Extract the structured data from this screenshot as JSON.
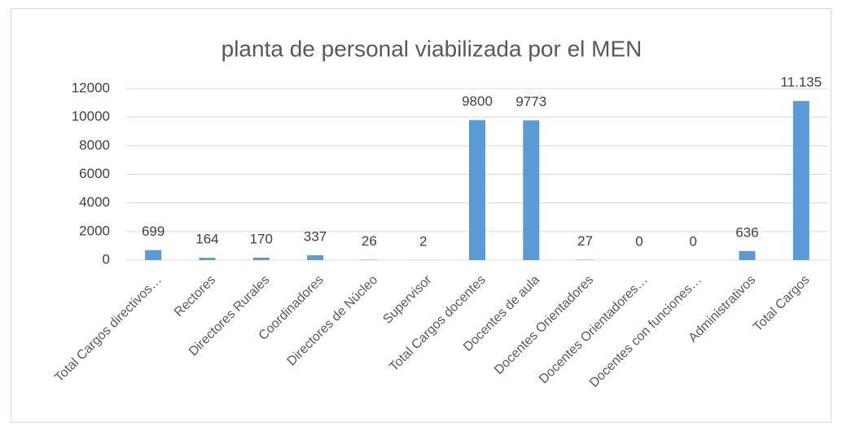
{
  "chart_data": {
    "type": "bar",
    "title": "planta de personal viabilizada por el MEN",
    "categories": [
      "Total Cargos directivos…",
      "Rectores",
      "Directores Rurales",
      "Coordinadores",
      "Directores de Núcleo",
      "Supervisor",
      "Total Cargos docentes",
      "Docentes de aula",
      "Docentes Orientadores",
      "Docentes Orientadores…",
      "Docentes con funciones…",
      "Administrativos",
      "Total Cargos"
    ],
    "values": [
      699,
      164,
      170,
      337,
      26,
      2,
      9800,
      9773,
      27,
      0,
      0,
      636,
      11135
    ],
    "value_labels": [
      "699",
      "164",
      "170",
      "337",
      "26",
      "2",
      "9800",
      "9773",
      "27",
      "0",
      "0",
      "636",
      "11.135"
    ],
    "color": "#5b9bd5",
    "ylim": [
      0,
      12000
    ],
    "yticks": [
      0,
      2000,
      4000,
      6000,
      8000,
      10000,
      12000
    ],
    "grid": true
  }
}
